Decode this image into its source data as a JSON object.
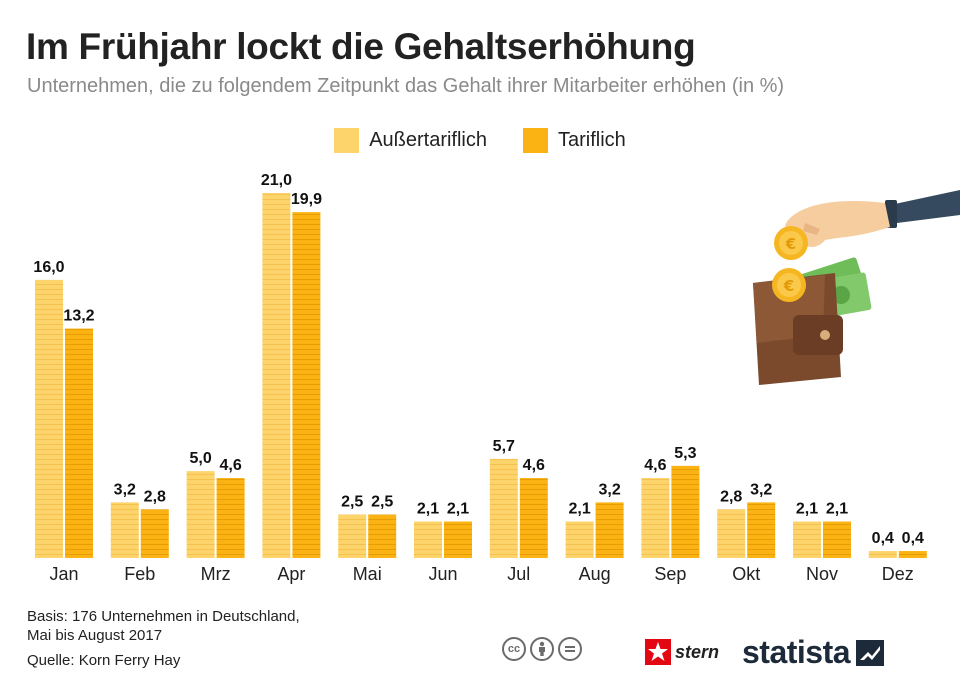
{
  "chart_data": {
    "type": "bar",
    "title": "Im Frühjahr lockt die Gehaltserhöhung",
    "subtitle": "Unternehmen, die zu folgendem Zeitpunkt das Gehalt ihrer Mitarbeiter erhöhen (in %)",
    "categories": [
      "Jan",
      "Feb",
      "Mrz",
      "Apr",
      "Mai",
      "Jun",
      "Jul",
      "Aug",
      "Sep",
      "Okt",
      "Nov",
      "Dez"
    ],
    "series": [
      {
        "name": "Außertariflich",
        "color": "#fdd46c",
        "values": [
          16.0,
          3.2,
          5.0,
          21.0,
          2.5,
          2.1,
          5.7,
          2.1,
          4.6,
          2.8,
          2.1,
          0.4
        ],
        "labels": [
          "16,0",
          "3,2",
          "5,0",
          "21,0",
          "2,5",
          "2,1",
          "5,7",
          "2,1",
          "4,6",
          "2,8",
          "2,1",
          "0,4"
        ]
      },
      {
        "name": "Tariflich",
        "color": "#fbb314",
        "values": [
          13.2,
          2.8,
          4.6,
          19.9,
          2.5,
          2.1,
          4.6,
          3.2,
          5.3,
          3.2,
          2.1,
          0.4
        ],
        "labels": [
          "13,2",
          "2,8",
          "4,6",
          "19,9",
          "2,5",
          "2,1",
          "4,6",
          "3,2",
          "5,3",
          "3,2",
          "2,1",
          "0,4"
        ]
      }
    ],
    "ylim": [
      0,
      21
    ],
    "legend_position": "top-center",
    "grid": false
  },
  "footer": {
    "basis_line1": "Basis: 176 Unternehmen in Deutschland,",
    "basis_line2": "Mai bis August 2017",
    "source": "Quelle: Korn Ferry Hay"
  },
  "branding": {
    "cc_icons": [
      "cc",
      "by",
      "nd"
    ],
    "stern": "stern",
    "statista": "statista"
  },
  "illustration": {
    "icons": [
      "hand-icon",
      "coin-icon",
      "wallet-icon",
      "banknote-icon"
    ]
  }
}
